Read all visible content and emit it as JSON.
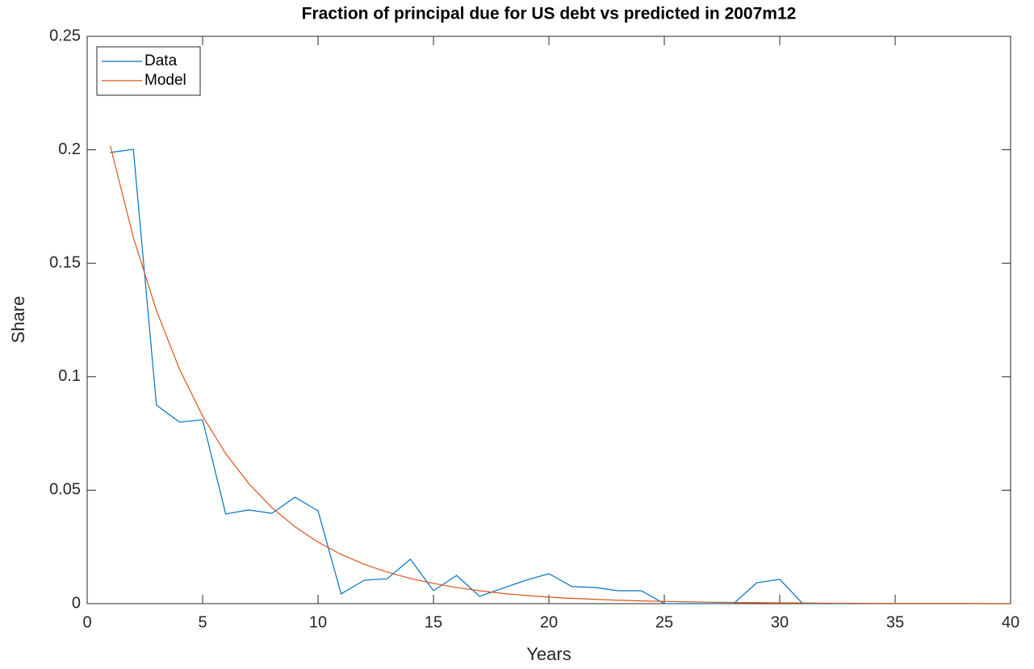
{
  "chart_data": {
    "type": "line",
    "title": "Fraction of principal due for US debt vs predicted in 2007m12",
    "x_label": "Years",
    "y_label": "Share",
    "x": [
      1,
      2,
      3,
      4,
      5,
      6,
      7,
      8,
      9,
      10,
      11,
      12,
      13,
      14,
      15,
      16,
      17,
      18,
      19,
      20,
      21,
      22,
      23,
      24,
      25,
      26,
      27,
      28,
      29,
      30,
      31,
      32,
      33,
      34,
      35,
      36,
      37,
      38,
      39,
      40
    ],
    "series": [
      {
        "name": "Data",
        "color": "#0072BD",
        "values": [
          0.1988,
          0.2002,
          0.0875,
          0.08,
          0.081,
          0.0395,
          0.0413,
          0.0398,
          0.0469,
          0.0409,
          0.0043,
          0.0103,
          0.011,
          0.0196,
          0.0057,
          0.0124,
          0.0032,
          0.0068,
          0.0103,
          0.0132,
          0.0075,
          0.0071,
          0.0057,
          0.0057,
          0,
          0,
          0,
          0,
          0.0092,
          0.0107,
          0,
          0,
          0,
          0,
          0,
          0,
          0,
          0,
          0,
          0
        ]
      },
      {
        "name": "Model",
        "color": "#D95319",
        "values": [
          0.2018,
          0.1614,
          0.1292,
          0.1033,
          0.0827,
          0.0661,
          0.0529,
          0.0423,
          0.0339,
          0.0271,
          0.0217,
          0.0173,
          0.0139,
          0.0111,
          0.0089,
          0.0071,
          0.0057,
          0.0045,
          0.0036,
          0.0029,
          0.0023,
          0.0019,
          0.0015,
          0.0012,
          0.001,
          0.0008,
          0.0006,
          0.0005,
          0.0004,
          0.0003,
          0.0003,
          0.0002,
          0.0002,
          0.0001,
          0.0001,
          0.0001,
          0.0001,
          0.0001,
          0,
          0
        ]
      }
    ],
    "xlim": [
      0,
      40
    ],
    "xticks": [
      0,
      5,
      10,
      15,
      20,
      25,
      30,
      35,
      40
    ],
    "ylim": [
      0,
      0.25
    ],
    "yticks": [
      0,
      0.05,
      0.1,
      0.15,
      0.2,
      0.25
    ],
    "grid": false,
    "legend": "top-left"
  }
}
